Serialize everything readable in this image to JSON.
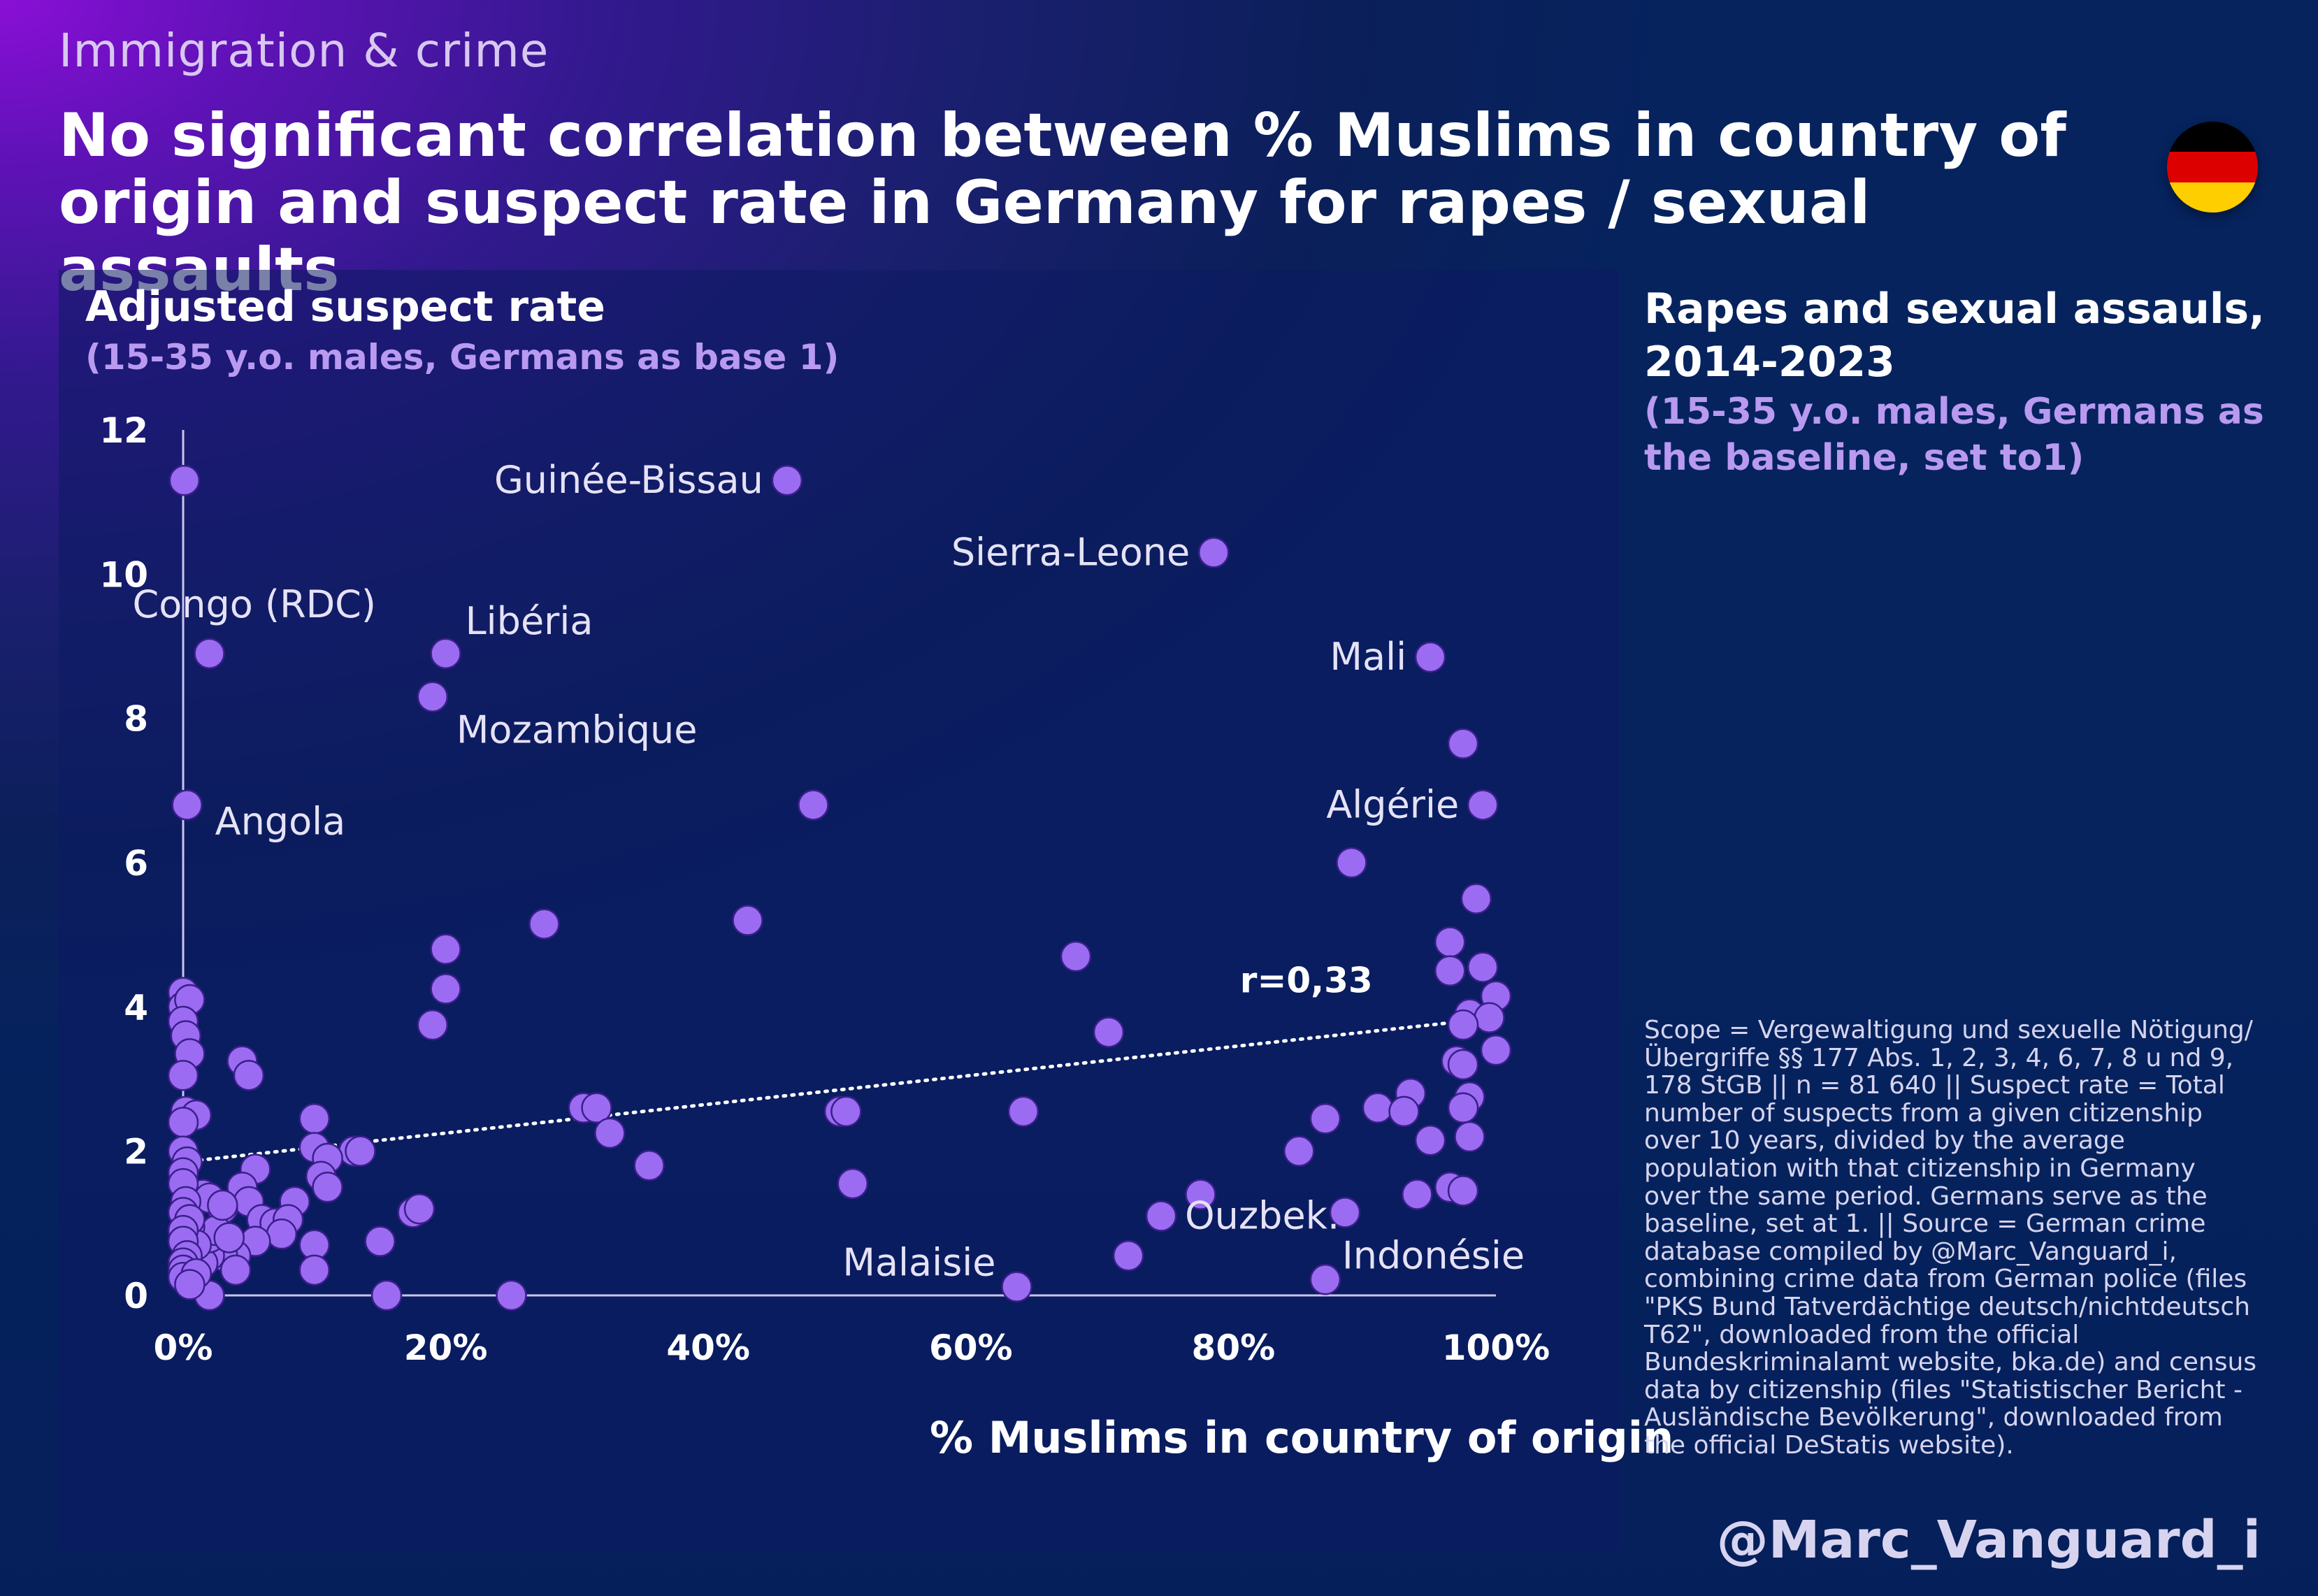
{
  "section_label": "Immigration & crime",
  "title": "No significant correlation between % Muslims in country of origin and suspect rate in Germany for rapes / sexual assaults",
  "side_title": "Rapes and sexual assauls, 2014-2023",
  "side_subtitle": "(15-35 y.o. males, Germans as the baseline, set to1)",
  "side_note": "Scope = Vergewaltigung und sexuelle Nötigung/Übergriffe §§ 177 Abs. 1, 2, 3, 4, 6, 7, 8 u nd 9, 178 StGB || n = 81 640 || Suspect rate = Total number of suspects from a given citizenship over 10 years, divided by the average population with that citizenship in Germany over the same period. Germans serve as the baseline, set at 1. || Source = German crime database compiled by @Marc_Vanguard_i, combining crime data from German police (files \"PKS Bund Tatverdächtige deutsch/nichtdeutsch T62\", downloaded from the official Bundeskriminalamt website, bka.de) and census data by citizenship (files \"Statistischer Bericht - Ausländische Bevölkerung\", downloaded from the official DeStatis website).",
  "signature": "@Marc_Vanguard_i",
  "flag_colors": [
    "#000000",
    "#dd0000",
    "#ffce00"
  ],
  "colors": {
    "point": "#9b6cf2",
    "point_stroke": "#3a1f8a",
    "axis": "#c9c4ea",
    "trend": "#ffffff"
  },
  "chart_data": {
    "type": "scatter",
    "xlabel": "% Muslims in country of origin",
    "ylabel": "Adjusted suspect rate",
    "ylabel_sub": "(15-35 y.o. males, Germans as base 1)",
    "xlim": [
      0,
      100
    ],
    "ylim": [
      0,
      12
    ],
    "x_ticks": [
      0,
      20,
      40,
      60,
      80,
      100
    ],
    "x_tick_labels": [
      "0%",
      "20%",
      "40%",
      "60%",
      "80%",
      "100%"
    ],
    "y_ticks": [
      0,
      2,
      4,
      6,
      8,
      10,
      12
    ],
    "y_tick_labels": [
      "0",
      "2",
      "4",
      "6",
      "8",
      "10",
      "12"
    ],
    "grid": false,
    "trendline": {
      "x": [
        0,
        100
      ],
      "y": [
        1.85,
        3.85
      ],
      "label": "r=0,33",
      "style": "dotted"
    },
    "labeled_points": [
      {
        "name": "Congo (RDC)",
        "x": 2,
        "y": 8.9
      },
      {
        "name": "Angola",
        "x": 0.3,
        "y": 6.8
      },
      {
        "name": "Guinée-Bissau",
        "x": 46,
        "y": 11.3
      },
      {
        "name": "Libéria",
        "x": 20,
        "y": 8.9
      },
      {
        "name": "Mozambique",
        "x": 19,
        "y": 8.3
      },
      {
        "name": "Sierra-Leone",
        "x": 78.5,
        "y": 10.3
      },
      {
        "name": "Mali",
        "x": 95,
        "y": 8.85
      },
      {
        "name": "Algérie",
        "x": 99,
        "y": 6.8
      },
      {
        "name": "Ouzbek.",
        "x": 74.5,
        "y": 1.1
      },
      {
        "name": "Malaisie",
        "x": 63.5,
        "y": 0.12
      },
      {
        "name": "Indonésie",
        "x": 87,
        "y": 0.22
      }
    ],
    "points": [
      [
        0.1,
        11.3
      ],
      [
        2,
        8.9
      ],
      [
        0.3,
        6.8
      ],
      [
        46,
        11.3
      ],
      [
        20,
        8.9
      ],
      [
        19,
        8.3
      ],
      [
        78.5,
        10.3
      ],
      [
        95,
        8.85
      ],
      [
        97.5,
        7.65
      ],
      [
        99,
        6.8
      ],
      [
        48,
        6.8
      ],
      [
        89,
        6.0
      ],
      [
        98.5,
        5.5
      ],
      [
        27.5,
        5.15
      ],
      [
        43,
        5.2
      ],
      [
        20,
        4.8
      ],
      [
        68,
        4.7
      ],
      [
        20,
        4.25
      ],
      [
        96.5,
        4.9
      ],
      [
        96.5,
        4.5
      ],
      [
        99,
        4.55
      ],
      [
        100,
        4.15
      ],
      [
        98,
        3.9
      ],
      [
        19,
        3.75
      ],
      [
        70.5,
        3.65
      ],
      [
        99.5,
        3.85
      ],
      [
        97.5,
        3.75
      ],
      [
        100,
        3.4
      ],
      [
        97,
        3.25
      ],
      [
        97.5,
        3.2
      ],
      [
        4.5,
        3.25
      ],
      [
        5,
        3.05
      ],
      [
        98,
        2.75
      ],
      [
        93.5,
        2.8
      ],
      [
        91,
        2.6
      ],
      [
        93,
        2.55
      ],
      [
        97.5,
        2.6
      ],
      [
        30.5,
        2.6
      ],
      [
        31.5,
        2.6
      ],
      [
        32.5,
        2.25
      ],
      [
        50,
        2.55
      ],
      [
        50.5,
        2.55
      ],
      [
        64,
        2.55
      ],
      [
        87,
        2.45
      ],
      [
        85,
        2.0
      ],
      [
        95,
        2.15
      ],
      [
        98,
        2.2
      ],
      [
        35.5,
        1.8
      ],
      [
        10,
        2.45
      ],
      [
        10,
        2.05
      ],
      [
        13,
        2.0
      ],
      [
        13.5,
        2.0
      ],
      [
        11,
        1.9
      ],
      [
        10.5,
        1.65
      ],
      [
        11,
        1.5
      ],
      [
        51,
        1.55
      ],
      [
        94,
        1.4
      ],
      [
        96.5,
        1.5
      ],
      [
        97.5,
        1.45
      ],
      [
        77.5,
        1.4
      ],
      [
        74.5,
        1.1
      ],
      [
        88.5,
        1.15
      ],
      [
        72,
        0.55
      ],
      [
        63.5,
        0.12
      ],
      [
        87,
        0.22
      ],
      [
        17.5,
        1.15
      ],
      [
        18,
        1.2
      ],
      [
        15,
        0.75
      ],
      [
        10,
        0.7
      ],
      [
        10,
        0.35
      ],
      [
        15.5,
        0.0
      ],
      [
        25,
        0.0
      ],
      [
        2,
        0.0
      ],
      [
        5.5,
        1.75
      ],
      [
        4.5,
        1.5
      ],
      [
        5,
        1.3
      ],
      [
        3,
        1.2
      ],
      [
        6,
        1.05
      ],
      [
        7,
        1.0
      ],
      [
        8.5,
        1.3
      ],
      [
        8,
        1.05
      ],
      [
        7.5,
        0.85
      ],
      [
        5.5,
        0.75
      ],
      [
        4,
        0.55
      ],
      [
        3,
        0.55
      ],
      [
        2,
        0.55
      ],
      [
        1.5,
        0.45
      ],
      [
        4,
        0.35
      ],
      [
        2,
        0.8
      ],
      [
        2.5,
        0.9
      ],
      [
        3.5,
        0.8
      ],
      [
        1.5,
        1.4
      ],
      [
        2,
        1.35
      ],
      [
        3,
        1.25
      ],
      [
        0.5,
        0.95
      ],
      [
        1,
        0.7
      ],
      [
        0,
        4.2
      ],
      [
        0,
        4.0
      ],
      [
        0.5,
        4.1
      ],
      [
        0,
        3.8
      ],
      [
        0.2,
        3.6
      ],
      [
        0.5,
        3.35
      ],
      [
        0,
        3.05
      ],
      [
        0.2,
        2.55
      ],
      [
        1,
        2.5
      ],
      [
        0,
        2.4
      ],
      [
        0,
        2.0
      ],
      [
        0.3,
        1.85
      ],
      [
        0,
        1.7
      ],
      [
        0,
        1.55
      ],
      [
        0.2,
        1.3
      ],
      [
        0,
        1.15
      ],
      [
        0.5,
        1.05
      ],
      [
        0,
        0.9
      ],
      [
        0,
        0.75
      ],
      [
        0.3,
        0.55
      ],
      [
        0,
        0.45
      ],
      [
        0,
        0.35
      ],
      [
        0,
        0.25
      ],
      [
        1,
        0.3
      ],
      [
        0.5,
        0.15
      ]
    ]
  }
}
